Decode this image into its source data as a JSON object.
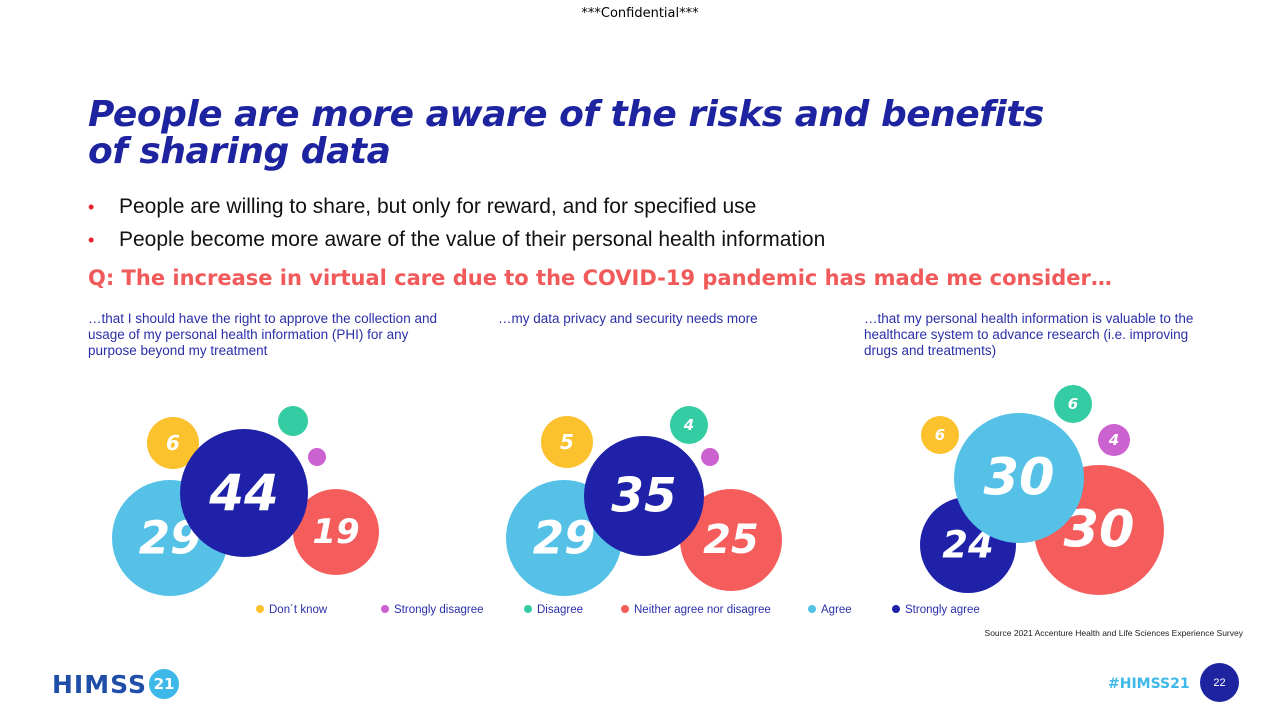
{
  "header": {
    "confidential": "***Confidential***"
  },
  "title": "People are more aware of the risks and benefits of sharing data",
  "bullets": [
    "People are willing to share, but only for reward, and for specified use",
    "People become more aware of the value of their personal health information"
  ],
  "question": "Q: The increase in virtual care due to the COVID-19 pandemic has made me consider…",
  "colors": {
    "dont_know": "#fcc22d",
    "strongly_disagree": "#cb62cf",
    "disagree": "#33cca3",
    "neither": "#f55c5c",
    "agree": "#55c1e7",
    "strongly_agree": "#1f22a8",
    "title": "#1e24a0",
    "question": "#f05a5a"
  },
  "chart_data": [
    {
      "type": "bubble",
      "title": "…that I should have the right to approve the collection and usage of my personal health information (PHI) for any purpose beyond my treatment",
      "categories": [
        "Don´t know",
        "Strongly disagree",
        "Disagree",
        "Neither agree nor disagree",
        "Agree",
        "Strongly agree"
      ],
      "values": [
        6,
        null,
        null,
        19,
        29,
        44
      ]
    },
    {
      "type": "bubble",
      "title": "…my data privacy and security needs more",
      "categories": [
        "Don´t know",
        "Strongly disagree",
        "Disagree",
        "Neither agree nor disagree",
        "Agree",
        "Strongly agree"
      ],
      "values": [
        5,
        null,
        4,
        25,
        29,
        35
      ]
    },
    {
      "type": "bubble",
      "title": "…that my personal health information is valuable to the healthcare system to advance research (i.e. improving drugs and treatments)",
      "categories": [
        "Don´t know",
        "Strongly disagree",
        "Disagree",
        "Neither agree nor disagree",
        "Agree",
        "Strongly agree"
      ],
      "values": [
        6,
        4,
        6,
        30,
        30,
        24
      ]
    }
  ],
  "legend": [
    {
      "label": "Don´t know",
      "color_key": "dont_know"
    },
    {
      "label": "Strongly disagree",
      "color_key": "strongly_disagree"
    },
    {
      "label": "Disagree",
      "color_key": "disagree"
    },
    {
      "label": "Neither agree nor disagree",
      "color_key": "neither"
    },
    {
      "label": "Agree",
      "color_key": "agree"
    },
    {
      "label": "Strongly agree",
      "color_key": "strongly_agree"
    }
  ],
  "source": "Source 2021 Accenture Health and Life Sciences Experience Survey",
  "footer": {
    "logo_text": "HIMSS",
    "logo_badge": "21",
    "hashtag": "#HIMSS21",
    "page_number": "22"
  }
}
